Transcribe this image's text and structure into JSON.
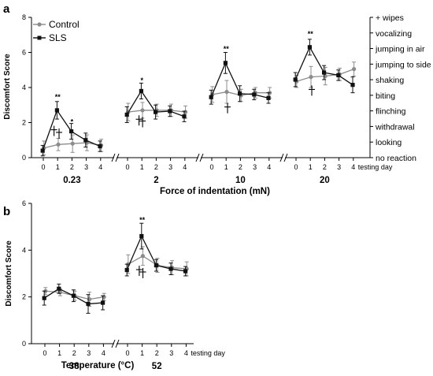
{
  "colors": {
    "control": "#8c8c8c",
    "sls": "#111111",
    "axis": "#000000"
  },
  "chart_data": [
    {
      "panel_label": "a",
      "type": "line",
      "ylabel": "Discomfort Score",
      "xlabel": "Force of indentation (mN)",
      "ylim": [
        0,
        8
      ],
      "yticks": [
        0,
        2,
        4,
        6,
        8
      ],
      "x_tick_labels": [
        "0",
        "1",
        "2",
        "3",
        "4"
      ],
      "x_suffix": "testing day",
      "right_axis_labels": [
        "+ wipes",
        "vocalizing",
        "jumping in air",
        "jumping to side",
        "shaking",
        "biting",
        "flinching",
        "withdrawal",
        "looking",
        "no reaction"
      ],
      "legend": [
        {
          "name": "Control",
          "marker": "circle"
        },
        {
          "name": "SLS",
          "marker": "square"
        }
      ],
      "groups": [
        {
          "label": "0.23",
          "series": [
            {
              "name": "Control",
              "values": [
                0.55,
                0.75,
                0.8,
                0.85,
                0.7
              ],
              "errors": [
                0.4,
                0.35,
                0.5,
                0.45,
                0.35
              ]
            },
            {
              "name": "SLS",
              "values": [
                0.4,
                2.7,
                1.5,
                1.0,
                0.65
              ],
              "errors": [
                0.3,
                0.5,
                0.45,
                0.4,
                0.3
              ]
            }
          ],
          "annotations": [
            {
              "day": 1,
              "text": "**",
              "y": 3.45
            },
            {
              "day": 2,
              "text": "*",
              "y": 2.05
            }
          ],
          "daggers": [
            {
              "day": 0.75,
              "y": 1.5
            },
            {
              "day": 1.1,
              "y": 1.35
            }
          ]
        },
        {
          "label": "2",
          "series": [
            {
              "name": "Control",
              "values": [
                2.6,
                2.7,
                2.7,
                2.7,
                2.6
              ],
              "errors": [
                0.5,
                0.45,
                0.35,
                0.35,
                0.35
              ]
            },
            {
              "name": "SLS",
              "values": [
                2.45,
                3.8,
                2.6,
                2.65,
                2.35
              ],
              "errors": [
                0.45,
                0.45,
                0.4,
                0.3,
                0.3
              ]
            }
          ],
          "annotations": [
            {
              "day": 1,
              "text": "*",
              "y": 4.4
            }
          ],
          "daggers": [
            {
              "day": 0.8,
              "y": 2.1
            },
            {
              "day": 1.05,
              "y": 2.0
            }
          ]
        },
        {
          "label": "10",
          "series": [
            {
              "name": "Control",
              "values": [
                3.6,
                3.75,
                3.55,
                3.7,
                3.7
              ],
              "errors": [
                0.45,
                0.65,
                0.35,
                0.3,
                0.3
              ]
            },
            {
              "name": "SLS",
              "values": [
                3.45,
                5.4,
                3.65,
                3.6,
                3.4
              ],
              "errors": [
                0.4,
                0.6,
                0.45,
                0.3,
                0.3
              ]
            }
          ],
          "annotations": [
            {
              "day": 1,
              "text": "**",
              "y": 6.2
            }
          ],
          "daggers": [
            {
              "day": 1.1,
              "y": 2.8
            }
          ]
        },
        {
          "label": "20",
          "series": [
            {
              "name": "Control",
              "values": [
                4.35,
                4.6,
                4.65,
                4.75,
                5.05
              ],
              "errors": [
                0.35,
                0.6,
                0.5,
                0.35,
                0.4
              ]
            },
            {
              "name": "SLS",
              "values": [
                4.45,
                6.3,
                4.85,
                4.7,
                4.15
              ],
              "errors": [
                0.4,
                0.45,
                0.4,
                0.3,
                0.45
              ]
            }
          ],
          "annotations": [
            {
              "day": 1,
              "text": "**",
              "y": 7.05
            }
          ],
          "daggers": [
            {
              "day": 1.1,
              "y": 3.8
            }
          ]
        }
      ]
    },
    {
      "panel_label": "b",
      "type": "line",
      "ylabel": "Discomfort Score",
      "xlabel": "Temperature (°C)",
      "ylim": [
        0,
        6
      ],
      "yticks": [
        0,
        2,
        4,
        6
      ],
      "x_tick_labels": [
        "0",
        "1",
        "2",
        "3",
        "4"
      ],
      "x_suffix": "testing day",
      "groups": [
        {
          "label": "38",
          "series": [
            {
              "name": "Control",
              "values": [
                2.25,
                2.2,
                2.05,
                1.9,
                2.0
              ],
              "errors": [
                0.15,
                0.15,
                0.2,
                0.3,
                0.15
              ]
            },
            {
              "name": "SLS",
              "values": [
                1.95,
                2.35,
                2.05,
                1.7,
                1.75
              ],
              "errors": [
                0.3,
                0.2,
                0.25,
                0.4,
                0.3
              ]
            }
          ],
          "annotations": [],
          "daggers": []
        },
        {
          "label": "52",
          "series": [
            {
              "name": "Control",
              "values": [
                3.4,
                3.75,
                3.35,
                3.25,
                3.2
              ],
              "errors": [
                0.4,
                0.4,
                0.3,
                0.3,
                0.3
              ]
            },
            {
              "name": "SLS",
              "values": [
                3.15,
                4.6,
                3.35,
                3.2,
                3.1
              ],
              "errors": [
                0.25,
                0.55,
                0.25,
                0.25,
                0.2
              ]
            }
          ],
          "annotations": [
            {
              "day": 1,
              "text": "**",
              "y": 5.3
            }
          ],
          "daggers": [
            {
              "day": 0.8,
              "y": 3.1
            },
            {
              "day": 1.05,
              "y": 3.0
            }
          ]
        }
      ]
    }
  ]
}
